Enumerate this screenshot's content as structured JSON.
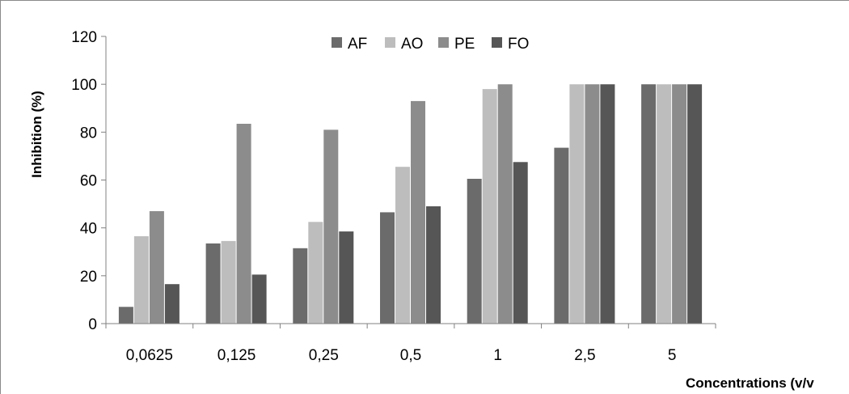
{
  "chart_data": {
    "type": "bar",
    "title": "",
    "xlabel": "Concentrations  (v/v",
    "ylabel": "Inhibition  (%)",
    "ylim": [
      0,
      120
    ],
    "yticks": [
      0,
      20,
      40,
      60,
      80,
      100,
      120
    ],
    "grid": false,
    "legend_position": "top",
    "categories": [
      "0,0625",
      "0,125",
      "0,25",
      "0,5",
      "1",
      "2,5",
      "5"
    ],
    "series": [
      {
        "name": "AF",
        "color": "#6b6b6b",
        "values": [
          7,
          33.5,
          31.5,
          46.5,
          60.5,
          73.5,
          100
        ]
      },
      {
        "name": "AO",
        "color": "#bdbdbd",
        "values": [
          36.5,
          34.5,
          42.5,
          65.5,
          98,
          100,
          100
        ]
      },
      {
        "name": "PE",
        "color": "#8c8c8c",
        "values": [
          47,
          83.5,
          81,
          93,
          100,
          100,
          100
        ]
      },
      {
        "name": "FO",
        "color": "#565656",
        "values": [
          16.5,
          20.5,
          38.5,
          49,
          67.5,
          100,
          100
        ]
      }
    ]
  }
}
